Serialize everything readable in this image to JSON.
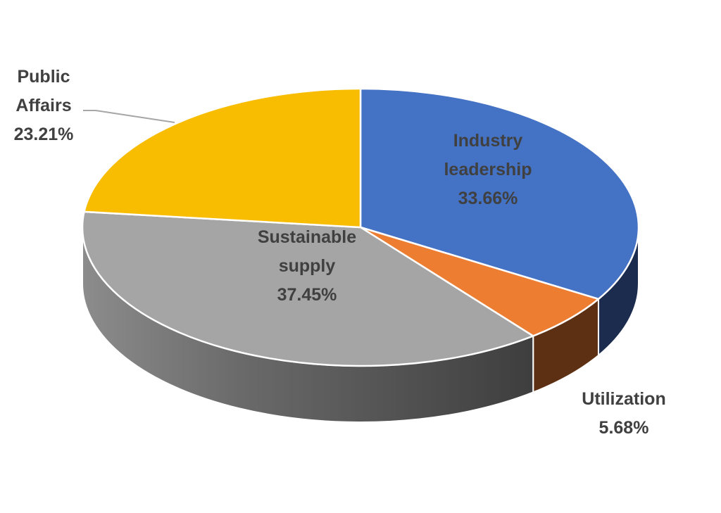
{
  "chart_data": {
    "type": "pie",
    "style": "3d",
    "title": "",
    "slices": [
      {
        "label_lines": [
          "Industry",
          "leadership"
        ],
        "value": 33.66,
        "value_label": "33.66%",
        "color": "#4472c4",
        "side_color": "#1c2c4e",
        "label_color": "#404040",
        "label_position": "inside"
      },
      {
        "label_lines": [
          "Utilization"
        ],
        "value": 5.68,
        "value_label": "5.68%",
        "color": "#ed7d31",
        "side_color": "#5e3013",
        "label_color": "#404040",
        "label_position": "outside"
      },
      {
        "label_lines": [
          "Sustainable",
          "supply"
        ],
        "value": 37.45,
        "value_label": "37.45%",
        "color": "#a5a5a5",
        "side_color": "#555555",
        "label_color": "#404040",
        "label_position": "inside"
      },
      {
        "label_lines": [
          "Public",
          "Affairs"
        ],
        "value": 23.21,
        "value_label": "23.21%",
        "color": "#f8bc00",
        "side_color": "#7a5c00",
        "label_color": "#404040",
        "label_position": "outside-leader"
      }
    ]
  }
}
